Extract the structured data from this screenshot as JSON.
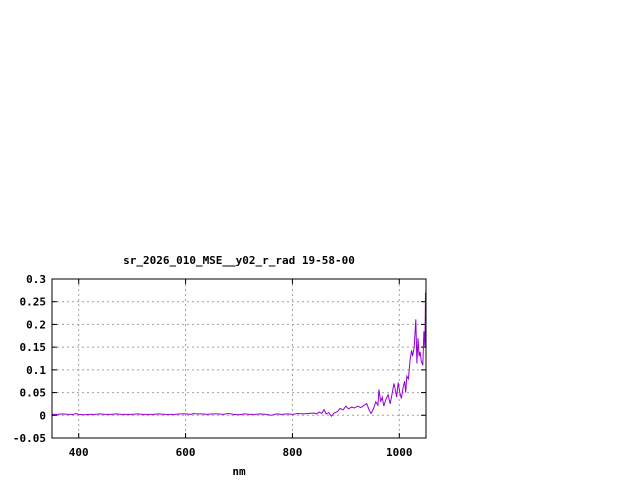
{
  "chart_data": {
    "type": "line",
    "title": "sr_2026_010_MSE__y02_r_rad 19-58-00",
    "xlabel": "nm",
    "ylabel": "",
    "xlim": [
      350,
      1050
    ],
    "ylim": [
      -0.05,
      0.3
    ],
    "xticks": [
      400,
      600,
      800,
      1000
    ],
    "xtick_labels": [
      "400",
      "600",
      "800",
      "1000"
    ],
    "yticks": [
      -0.05,
      0,
      0.05,
      0.1,
      0.15,
      0.2,
      0.25,
      0.3
    ],
    "ytick_labels": [
      "-0.05",
      "0",
      "0.05",
      "0.1",
      "0.15",
      "0.2",
      "0.25",
      "0.3"
    ],
    "grid": true,
    "colors": {
      "series": "#9400d3",
      "grid": "#a0a0a0",
      "axes": "#000000"
    },
    "series": [
      {
        "x": [
          350,
          360,
          370,
          380,
          390,
          395,
          400,
          410,
          420,
          430,
          440,
          450,
          460,
          470,
          480,
          490,
          500,
          510,
          520,
          530,
          540,
          550,
          560,
          570,
          580,
          590,
          600,
          610,
          615,
          620,
          630,
          640,
          650,
          660,
          670,
          680,
          690,
          700,
          710,
          720,
          730,
          740,
          750,
          760,
          770,
          780,
          790,
          800,
          810,
          820,
          830,
          840,
          845,
          850,
          855,
          859,
          863,
          868,
          873,
          878,
          884,
          889,
          895,
          900,
          905,
          911,
          916,
          922,
          928,
          934,
          939,
          944,
          947,
          952,
          956,
          960,
          962,
          965,
          968,
          971,
          975,
          979,
          983,
          987,
          990,
          992,
          995,
          998,
          1001,
          1004,
          1007,
          1010,
          1012,
          1014,
          1017,
          1020,
          1023,
          1025,
          1028,
          1031,
          1033,
          1035,
          1037,
          1039,
          1041,
          1044,
          1046,
          1048,
          1049,
          1050
        ],
        "y": [
          0.002,
          0.002,
          0.003,
          0.002,
          0.002,
          0.004,
          0.002,
          0.001,
          0.002,
          0.002,
          0.003,
          0.002,
          0.002,
          0.003,
          0.002,
          0.002,
          0.002,
          0.003,
          0.002,
          0.002,
          0.002,
          0.003,
          0.002,
          0.002,
          0.002,
          0.003,
          0.003,
          0.002,
          0.004,
          0.003,
          0.003,
          0.002,
          0.003,
          0.003,
          0.002,
          0.004,
          0.002,
          0.001,
          0.003,
          0.002,
          0.002,
          0.003,
          0.002,
          0.0,
          0.003,
          0.002,
          0.003,
          0.002,
          0.004,
          0.003,
          0.004,
          0.005,
          0.003,
          0.007,
          0.004,
          0.0125,
          0.003,
          0.006,
          -0.002,
          0.005,
          0.008,
          0.015,
          0.012,
          0.02,
          0.014,
          0.018,
          0.016,
          0.02,
          0.017,
          0.022,
          0.026,
          0.01,
          0.004,
          0.015,
          0.03,
          0.022,
          0.057,
          0.03,
          0.04,
          0.02,
          0.035,
          0.045,
          0.025,
          0.05,
          0.07,
          0.06,
          0.04,
          0.072,
          0.05,
          0.037,
          0.06,
          0.075,
          0.05,
          0.086,
          0.08,
          0.12,
          0.143,
          0.13,
          0.15,
          0.211,
          0.114,
          0.17,
          0.13,
          0.14,
          0.12,
          0.11,
          0.185,
          0.15,
          0.27,
          0.23
        ]
      }
    ]
  }
}
